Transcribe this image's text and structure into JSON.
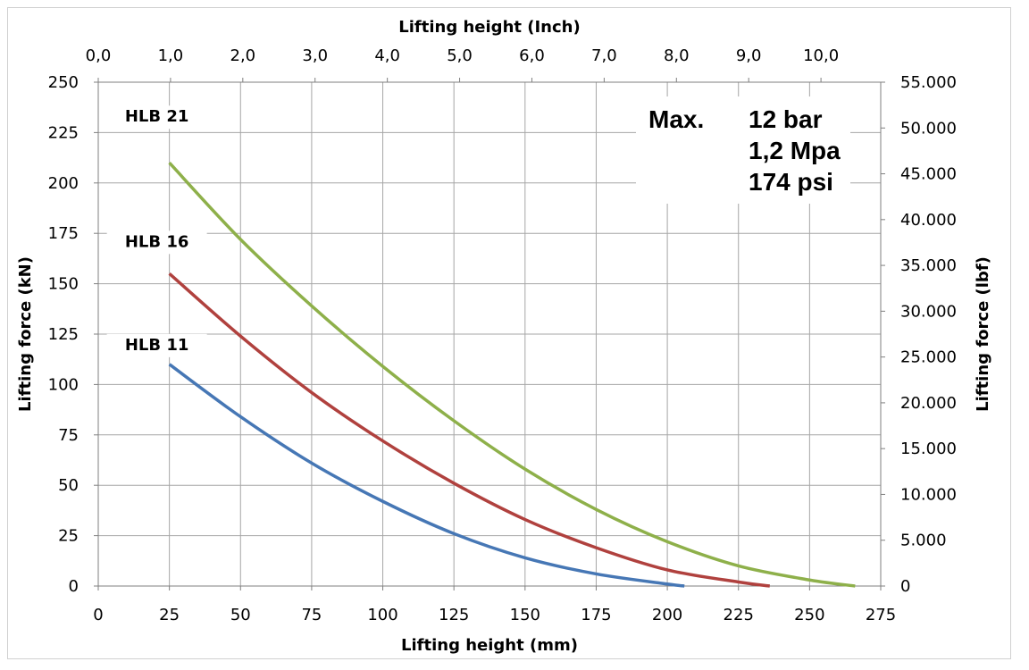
{
  "chart_data": {
    "type": "line",
    "xlabel": "Lifting height (mm)",
    "x2label": "Lifting height (Inch)",
    "ylabel": "Lifting force (kN)",
    "y2label": "Lifting force (lbf)",
    "xlim": [
      0,
      275
    ],
    "ylim": [
      0,
      250
    ],
    "y2lim": [
      0,
      55000
    ],
    "grid": true,
    "legend": "none",
    "x_ticks": [
      "0",
      "25",
      "50",
      "75",
      "100",
      "125",
      "150",
      "175",
      "200",
      "225",
      "250",
      "275"
    ],
    "y_ticks": [
      "0",
      "25",
      "50",
      "75",
      "100",
      "125",
      "150",
      "175",
      "200",
      "225",
      "250"
    ],
    "x2_ticks": [
      {
        "label": "0,0",
        "value": 0.0
      },
      {
        "label": "1,0",
        "value": 1.0
      },
      {
        "label": "2,0",
        "value": 2.0
      },
      {
        "label": "3,0",
        "value": 3.0
      },
      {
        "label": "4,0",
        "value": 4.0
      },
      {
        "label": "5,0",
        "value": 5.0
      },
      {
        "label": "6,0",
        "value": 6.0
      },
      {
        "label": "7,0",
        "value": 7.0
      },
      {
        "label": "8,0",
        "value": 8.0
      },
      {
        "label": "9,0",
        "value": 9.0
      },
      {
        "label": "10,0",
        "value": 10.0
      }
    ],
    "y2_ticks": [
      {
        "label": "0",
        "value": 0
      },
      {
        "label": "5.000",
        "value": 5000
      },
      {
        "label": "10.000",
        "value": 10000
      },
      {
        "label": "15.000",
        "value": 15000
      },
      {
        "label": "20.000",
        "value": 20000
      },
      {
        "label": "25.000",
        "value": 25000
      },
      {
        "label": "30.000",
        "value": 30000
      },
      {
        "label": "35.000",
        "value": 35000
      },
      {
        "label": "40.000",
        "value": 40000
      },
      {
        "label": "45.000",
        "value": 45000
      },
      {
        "label": "50.000",
        "value": 50000
      },
      {
        "label": "55.000",
        "value": 55000
      }
    ],
    "series": [
      {
        "name": "HLB 21",
        "color": "#8eb04a",
        "x": [
          25,
          50,
          75,
          100,
          125,
          150,
          175,
          200,
          225,
          250,
          266
        ],
        "y": [
          210,
          172,
          139,
          109,
          82,
          58,
          38,
          22,
          10,
          3,
          0
        ]
      },
      {
        "name": "HLB 16",
        "color": "#b0413e",
        "x": [
          25,
          50,
          75,
          100,
          125,
          150,
          175,
          200,
          225,
          236
        ],
        "y": [
          155,
          124,
          96,
          72,
          51,
          33,
          19,
          8,
          2,
          0
        ]
      },
      {
        "name": "HLB 11",
        "color": "#4677b5",
        "x": [
          25,
          50,
          75,
          100,
          125,
          150,
          175,
          200,
          206
        ],
        "y": [
          110,
          84,
          61,
          42,
          26,
          14,
          6,
          1,
          0
        ]
      }
    ],
    "annotations": {
      "max": "Max.",
      "bar": "12 bar",
      "mpa": "1,2 Mpa",
      "psi": "174 psi"
    }
  }
}
